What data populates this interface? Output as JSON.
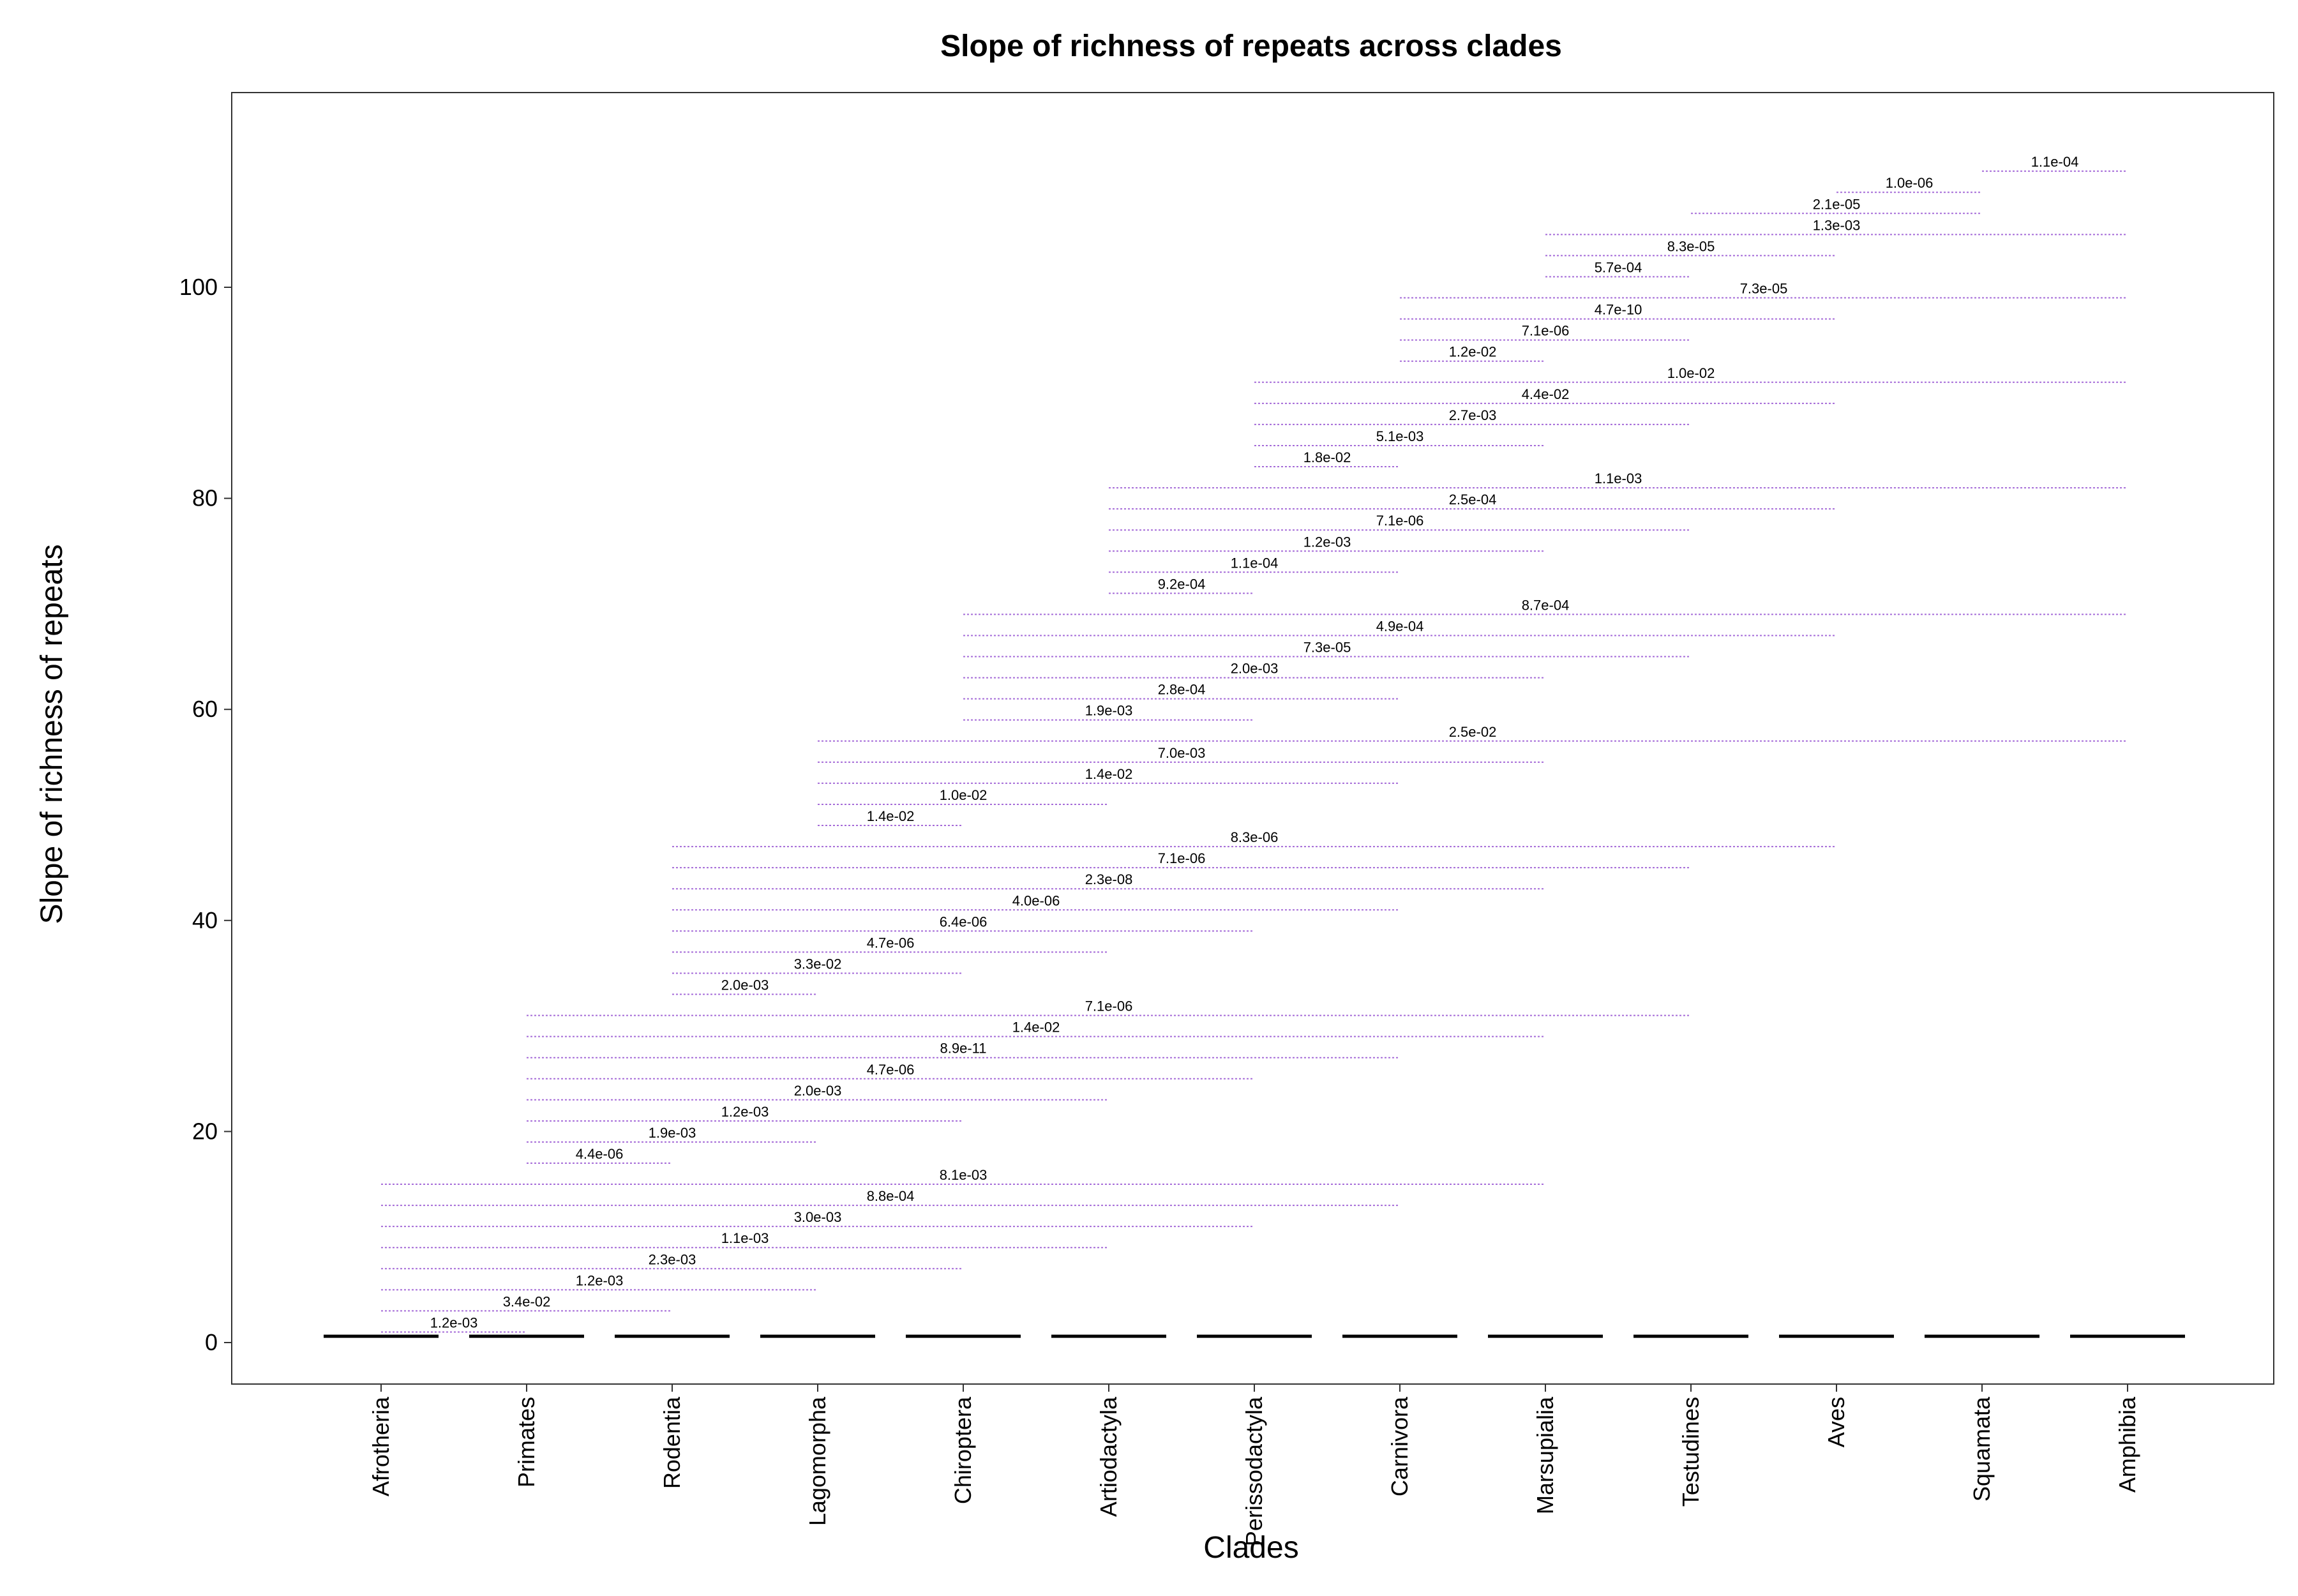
{
  "chart_data": {
    "type": "box",
    "title": "Slope of richness of repeats across clades",
    "xlabel": "Clades",
    "ylabel": "Slope of richness of repeats",
    "categories": [
      "Afrotheria",
      "Primates",
      "Rodentia",
      "Lagomorpha",
      "Chiroptera",
      "Artiodactyla",
      "Perissodactyla",
      "Carnivora",
      "Marsupialia",
      "Testudines",
      "Aves",
      "Squamata",
      "Amphibia"
    ],
    "values": [
      0.6,
      0.6,
      0.6,
      0.6,
      0.6,
      0.6,
      0.6,
      0.6,
      0.6,
      0.6,
      0.6,
      0.6,
      0.6
    ],
    "ylim": [
      -4,
      118
    ],
    "yticks": [
      0,
      20,
      40,
      60,
      80,
      100
    ],
    "grid": false,
    "colors": {
      "bracket": "#a56bd8",
      "box": "#000000",
      "frame": "#333333"
    },
    "comparisons": [
      {
        "from": "Afrotheria",
        "to": "Primates",
        "y": 1,
        "label": "1.2e-03"
      },
      {
        "from": "Afrotheria",
        "to": "Rodentia",
        "y": 3,
        "label": "3.4e-02"
      },
      {
        "from": "Afrotheria",
        "to": "Lagomorpha",
        "y": 5,
        "label": "1.2e-03"
      },
      {
        "from": "Afrotheria",
        "to": "Chiroptera",
        "y": 7,
        "label": "2.3e-03"
      },
      {
        "from": "Afrotheria",
        "to": "Artiodactyla",
        "y": 9,
        "label": "1.1e-03"
      },
      {
        "from": "Afrotheria",
        "to": "Perissodactyla",
        "y": 11,
        "label": "3.0e-03"
      },
      {
        "from": "Afrotheria",
        "to": "Carnivora",
        "y": 13,
        "label": "8.8e-04"
      },
      {
        "from": "Afrotheria",
        "to": "Marsupialia",
        "y": 15,
        "label": "8.1e-03"
      },
      {
        "from": "Primates",
        "to": "Rodentia",
        "y": 17,
        "label": "4.4e-06"
      },
      {
        "from": "Primates",
        "to": "Lagomorpha",
        "y": 19,
        "label": "1.9e-03"
      },
      {
        "from": "Primates",
        "to": "Chiroptera",
        "y": 21,
        "label": "1.2e-03"
      },
      {
        "from": "Primates",
        "to": "Artiodactyla",
        "y": 23,
        "label": "2.0e-03"
      },
      {
        "from": "Primates",
        "to": "Perissodactyla",
        "y": 25,
        "label": "4.7e-06"
      },
      {
        "from": "Primates",
        "to": "Carnivora",
        "y": 27,
        "label": "8.9e-11"
      },
      {
        "from": "Primates",
        "to": "Marsupialia",
        "y": 29,
        "label": "1.4e-02"
      },
      {
        "from": "Primates",
        "to": "Testudines",
        "y": 31,
        "label": "7.1e-06"
      },
      {
        "from": "Rodentia",
        "to": "Lagomorpha",
        "y": 33,
        "label": "2.0e-03"
      },
      {
        "from": "Rodentia",
        "to": "Chiroptera",
        "y": 35,
        "label": "3.3e-02"
      },
      {
        "from": "Rodentia",
        "to": "Artiodactyla",
        "y": 37,
        "label": "4.7e-06"
      },
      {
        "from": "Rodentia",
        "to": "Perissodactyla",
        "y": 39,
        "label": "6.4e-06"
      },
      {
        "from": "Rodentia",
        "to": "Carnivora",
        "y": 41,
        "label": "4.0e-06"
      },
      {
        "from": "Rodentia",
        "to": "Marsupialia",
        "y": 43,
        "label": "2.3e-08"
      },
      {
        "from": "Rodentia",
        "to": "Testudines",
        "y": 45,
        "label": "7.1e-06"
      },
      {
        "from": "Rodentia",
        "to": "Aves",
        "y": 47,
        "label": "8.3e-06"
      },
      {
        "from": "Lagomorpha",
        "to": "Chiroptera",
        "y": 49,
        "label": "1.4e-02"
      },
      {
        "from": "Lagomorpha",
        "to": "Artiodactyla",
        "y": 51,
        "label": "1.0e-02"
      },
      {
        "from": "Lagomorpha",
        "to": "Carnivora",
        "y": 53,
        "label": "1.4e-02"
      },
      {
        "from": "Lagomorpha",
        "to": "Marsupialia",
        "y": 55,
        "label": "7.0e-03"
      },
      {
        "from": "Lagomorpha",
        "to": "Amphibia",
        "y": 57,
        "label": "2.5e-02"
      },
      {
        "from": "Chiroptera",
        "to": "Perissodactyla",
        "y": 59,
        "label": "1.9e-03"
      },
      {
        "from": "Chiroptera",
        "to": "Carnivora",
        "y": 61,
        "label": "2.8e-04"
      },
      {
        "from": "Chiroptera",
        "to": "Marsupialia",
        "y": 63,
        "label": "2.0e-03"
      },
      {
        "from": "Chiroptera",
        "to": "Testudines",
        "y": 65,
        "label": "7.3e-05"
      },
      {
        "from": "Chiroptera",
        "to": "Aves",
        "y": 67,
        "label": "4.9e-04"
      },
      {
        "from": "Chiroptera",
        "to": "Amphibia",
        "y": 69,
        "label": "8.7e-04"
      },
      {
        "from": "Artiodactyla",
        "to": "Perissodactyla",
        "y": 71,
        "label": "9.2e-04"
      },
      {
        "from": "Artiodactyla",
        "to": "Carnivora",
        "y": 73,
        "label": "1.1e-04"
      },
      {
        "from": "Artiodactyla",
        "to": "Marsupialia",
        "y": 75,
        "label": "1.2e-03"
      },
      {
        "from": "Artiodactyla",
        "to": "Testudines",
        "y": 77,
        "label": "7.1e-06"
      },
      {
        "from": "Artiodactyla",
        "to": "Aves",
        "y": 79,
        "label": "2.5e-04"
      },
      {
        "from": "Artiodactyla",
        "to": "Amphibia",
        "y": 81,
        "label": "1.1e-03"
      },
      {
        "from": "Perissodactyla",
        "to": "Carnivora",
        "y": 83,
        "label": "1.8e-02"
      },
      {
        "from": "Perissodactyla",
        "to": "Marsupialia",
        "y": 85,
        "label": "5.1e-03"
      },
      {
        "from": "Perissodactyla",
        "to": "Testudines",
        "y": 87,
        "label": "2.7e-03"
      },
      {
        "from": "Perissodactyla",
        "to": "Aves",
        "y": 89,
        "label": "4.4e-02"
      },
      {
        "from": "Perissodactyla",
        "to": "Amphibia",
        "y": 91,
        "label": "1.0e-02"
      },
      {
        "from": "Carnivora",
        "to": "Marsupialia",
        "y": 93,
        "label": "1.2e-02"
      },
      {
        "from": "Carnivora",
        "to": "Testudines",
        "y": 95,
        "label": "7.1e-06"
      },
      {
        "from": "Carnivora",
        "to": "Aves",
        "y": 97,
        "label": "4.7e-10"
      },
      {
        "from": "Carnivora",
        "to": "Amphibia",
        "y": 99,
        "label": "7.3e-05"
      },
      {
        "from": "Marsupialia",
        "to": "Testudines",
        "y": 101,
        "label": "5.7e-04"
      },
      {
        "from": "Marsupialia",
        "to": "Aves",
        "y": 103,
        "label": "8.3e-05"
      },
      {
        "from": "Marsupialia",
        "to": "Amphibia",
        "y": 105,
        "label": "1.3e-03"
      },
      {
        "from": "Testudines",
        "to": "Squamata",
        "y": 107,
        "label": "2.1e-05"
      },
      {
        "from": "Aves",
        "to": "Squamata",
        "y": 109,
        "label": "1.0e-06"
      },
      {
        "from": "Squamata",
        "to": "Amphibia",
        "y": 111,
        "label": "1.1e-04"
      }
    ]
  }
}
